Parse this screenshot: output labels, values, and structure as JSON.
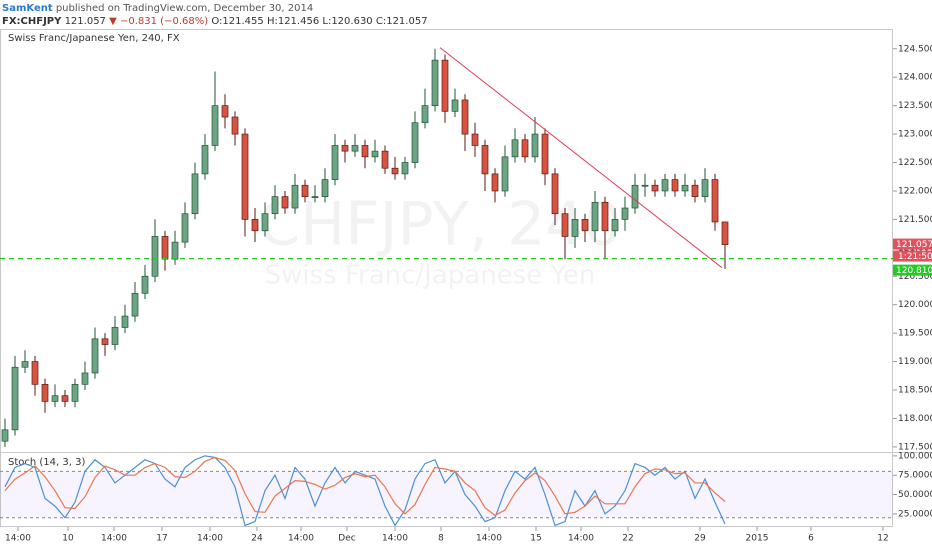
{
  "header": {
    "author": "SamKent",
    "published": "published on TradingView.com, December 30, 2014",
    "symbol": "FX:CHFJPY",
    "price": "121.057",
    "arrow": "▼",
    "change": "−0.831 (−0.68%)",
    "ohlc": [
      "O:121.455",
      "H:121.456",
      "L:120.630",
      "C:121.057"
    ]
  },
  "chart_data": [
    {
      "type": "candlestick",
      "title": "Swiss Franc/Japanese Yen, 240, FX",
      "watermark": "CHFJPY, 240",
      "watermark_subtitle": "Swiss Franc/Japanese Yen",
      "up_color": "#6ba583",
      "up_border": "#225437",
      "down_color": "#d75442",
      "down_border": "#5b1a13",
      "open": [
        117.6,
        117.8,
        118.9,
        119.0,
        118.6,
        118.3,
        118.4,
        118.3,
        118.6,
        118.8,
        119.4,
        119.3,
        119.6,
        119.8,
        120.2,
        120.5,
        121.2,
        120.8,
        121.1,
        121.6,
        122.3,
        122.8,
        123.5,
        123.3,
        123.0,
        121.5,
        121.3,
        121.6,
        121.9,
        121.7,
        122.1,
        121.9,
        121.9,
        122.2,
        122.8,
        122.7,
        122.8,
        122.6,
        122.7,
        122.4,
        122.3,
        122.5,
        123.2,
        123.5,
        124.3,
        123.4,
        123.6,
        123.0,
        122.8,
        122.3,
        122.0,
        122.6,
        122.9,
        122.6,
        123.0,
        122.3,
        121.6,
        121.2,
        121.5,
        121.3,
        121.8,
        121.3,
        121.5,
        121.7,
        122.1,
        122.1,
        122.0,
        122.2,
        122.0,
        122.1,
        121.9,
        122.2,
        121.455
      ],
      "high": [
        118.0,
        119.1,
        119.2,
        119.1,
        118.7,
        118.6,
        118.5,
        118.7,
        119.0,
        119.6,
        119.5,
        119.8,
        120.0,
        120.4,
        120.7,
        121.5,
        121.3,
        121.3,
        121.8,
        122.5,
        123.0,
        124.1,
        123.7,
        123.4,
        123.1,
        121.7,
        121.8,
        122.1,
        122.0,
        122.3,
        122.2,
        122.1,
        122.4,
        123.0,
        122.9,
        123.0,
        122.9,
        122.9,
        122.8,
        122.6,
        122.6,
        123.4,
        123.8,
        124.5,
        124.4,
        123.8,
        123.7,
        123.2,
        122.9,
        122.4,
        122.8,
        123.1,
        123.0,
        123.3,
        123.1,
        122.4,
        121.7,
        121.7,
        121.6,
        122.0,
        121.9,
        121.7,
        121.9,
        122.3,
        122.3,
        122.2,
        122.3,
        122.3,
        122.3,
        122.2,
        122.4,
        122.3,
        121.456
      ],
      "low": [
        117.5,
        117.7,
        118.8,
        118.4,
        118.1,
        118.2,
        118.2,
        118.2,
        118.5,
        118.7,
        119.1,
        119.2,
        119.5,
        119.7,
        120.1,
        120.4,
        120.6,
        120.7,
        121.0,
        121.5,
        122.2,
        122.7,
        123.1,
        122.8,
        121.2,
        121.1,
        121.2,
        121.5,
        121.6,
        121.6,
        121.8,
        121.8,
        121.8,
        122.1,
        122.5,
        122.6,
        122.4,
        122.5,
        122.3,
        122.2,
        122.2,
        122.4,
        123.1,
        123.4,
        123.2,
        123.3,
        122.7,
        122.6,
        122.0,
        121.8,
        121.9,
        122.5,
        122.5,
        122.5,
        122.1,
        121.4,
        120.8,
        121.0,
        121.1,
        121.1,
        120.8,
        121.2,
        121.3,
        121.6,
        121.9,
        121.9,
        121.9,
        121.9,
        121.9,
        121.8,
        121.8,
        121.3,
        120.63
      ],
      "close": [
        117.8,
        118.9,
        119.0,
        118.6,
        118.3,
        118.4,
        118.3,
        118.6,
        118.8,
        119.4,
        119.3,
        119.6,
        119.8,
        120.2,
        120.5,
        121.2,
        120.8,
        121.1,
        121.6,
        122.3,
        122.8,
        123.5,
        123.3,
        123.0,
        121.5,
        121.3,
        121.6,
        121.9,
        121.7,
        122.1,
        121.9,
        121.9,
        122.2,
        122.8,
        122.7,
        122.8,
        122.6,
        122.7,
        122.4,
        122.3,
        122.5,
        123.2,
        123.5,
        124.3,
        123.4,
        123.6,
        123.0,
        122.8,
        122.3,
        122.0,
        122.6,
        122.9,
        122.6,
        123.0,
        122.3,
        121.6,
        121.2,
        121.5,
        121.3,
        121.8,
        121.3,
        121.5,
        121.7,
        122.1,
        122.1,
        122.0,
        122.2,
        122.0,
        122.1,
        121.9,
        122.2,
        121.455,
        121.057
      ],
      "ylim": [
        117.41,
        124.83
      ],
      "yticks": [
        {
          "value": 117.5,
          "label": "117.500"
        },
        {
          "value": 118,
          "label": "118.000"
        },
        {
          "value": 118.5,
          "label": "118.500"
        },
        {
          "value": 119,
          "label": "119.000"
        },
        {
          "value": 119.5,
          "label": "119.500"
        },
        {
          "value": 120,
          "label": "120.000"
        },
        {
          "value": 120.5,
          "label": "120.500"
        },
        {
          "value": 121,
          "label": "121.000"
        },
        {
          "value": 121.5,
          "label": "121.500"
        },
        {
          "value": 122,
          "label": "122.000"
        },
        {
          "value": 122.5,
          "label": "122.500"
        },
        {
          "value": 123,
          "label": "123.000"
        },
        {
          "value": 123.5,
          "label": "123.500"
        },
        {
          "value": 124,
          "label": "124.000"
        },
        {
          "value": 124.5,
          "label": "124.500"
        }
      ],
      "xlim": [
        -0.5,
        88.8
      ],
      "xticks": [
        {
          "value": 1.3,
          "label": "14:00"
        },
        {
          "value": 6.3,
          "label": "10"
        },
        {
          "value": 10.9,
          "label": "14:00"
        },
        {
          "value": 15.7,
          "label": "17"
        },
        {
          "value": 20.5,
          "label": "14:00"
        },
        {
          "value": 25.2,
          "label": "24"
        },
        {
          "value": 29.6,
          "label": "14:00"
        },
        {
          "value": 34.2,
          "label": "Dec"
        },
        {
          "value": 39,
          "label": "14:00"
        },
        {
          "value": 43.6,
          "label": "8"
        },
        {
          "value": 48.4,
          "label": "14:00"
        },
        {
          "value": 53.1,
          "label": "15"
        },
        {
          "value": 57.6,
          "label": "14:00"
        },
        {
          "value": 62.3,
          "label": "22"
        },
        {
          "value": 69.5,
          "label": "29"
        },
        {
          "value": 75.2,
          "label": "2015"
        },
        {
          "value": 80.6,
          "label": "6"
        },
        {
          "value": 87.8,
          "label": "12"
        }
      ],
      "trendline": {
        "x": [
          43.5,
          71.7
        ],
        "y": [
          124.52,
          120.65
        ],
        "color": "#e03c50"
      },
      "hline": {
        "value": 120.81,
        "label": "120.810",
        "color": "#22cc22"
      },
      "last_price": {
        "value": 121.057,
        "label": "121.057",
        "color": "#e0525e"
      },
      "countdown": "1:21:50"
    },
    {
      "type": "line",
      "title": "Stoch (14, 3, 3)",
      "series": [
        {
          "color": "#4a90d9",
          "values": [
            60,
            85,
            90,
            85,
            45,
            35,
            20,
            40,
            80,
            95,
            85,
            65,
            75,
            85,
            95,
            90,
            70,
            60,
            85,
            95,
            100,
            98,
            85,
            60,
            10,
            15,
            55,
            75,
            45,
            85,
            70,
            35,
            65,
            85,
            65,
            80,
            75,
            70,
            35,
            10,
            30,
            70,
            90,
            95,
            65,
            80,
            50,
            35,
            15,
            20,
            55,
            80,
            70,
            85,
            50,
            10,
            15,
            55,
            35,
            55,
            25,
            35,
            55,
            90,
            85,
            75,
            85,
            70,
            80,
            45,
            70,
            40,
            12
          ]
        },
        {
          "color": "#e9774a",
          "values": [
            55,
            70,
            78,
            87,
            73,
            55,
            33,
            32,
            47,
            72,
            87,
            82,
            75,
            75,
            85,
            90,
            85,
            73,
            72,
            80,
            93,
            98,
            94,
            81,
            51,
            28,
            27,
            48,
            58,
            68,
            67,
            63,
            57,
            62,
            72,
            77,
            73,
            75,
            60,
            38,
            25,
            37,
            63,
            85,
            83,
            80,
            65,
            55,
            33,
            23,
            30,
            52,
            68,
            78,
            68,
            48,
            25,
            27,
            35,
            48,
            38,
            38,
            38,
            60,
            77,
            83,
            82,
            77,
            78,
            65,
            65,
            52,
            41
          ]
        }
      ],
      "bands": [
        20,
        80
      ],
      "ylim": [
        8,
        105
      ],
      "yticks": [
        {
          "value": 25,
          "label": "25.0000"
        },
        {
          "value": 50,
          "label": "50.0000"
        },
        {
          "value": 75,
          "label": "75.0000"
        },
        {
          "value": 100,
          "label": "100.0000"
        }
      ]
    }
  ]
}
